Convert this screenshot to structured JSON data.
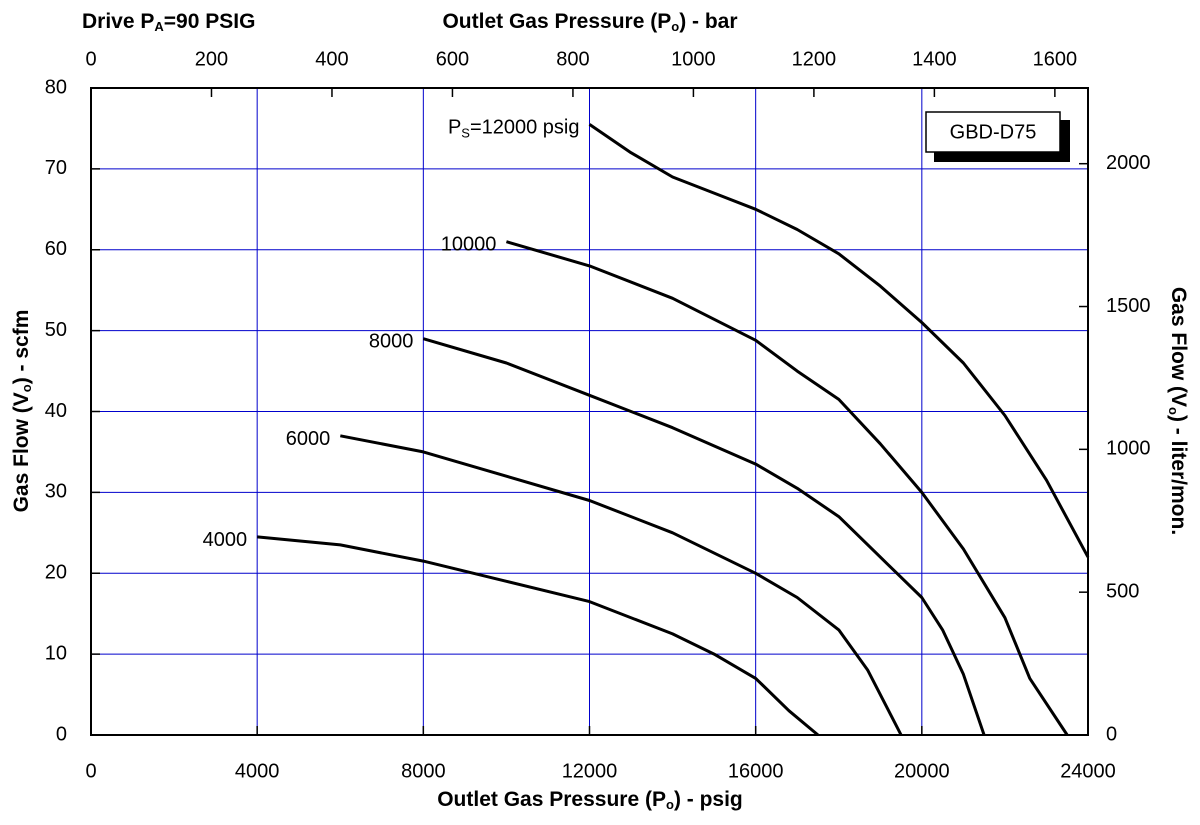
{
  "chart_data": {
    "type": "line",
    "top_left_label": [
      "Drive P",
      "A",
      "=90 PSIG"
    ],
    "x2_label": [
      "Outlet Gas Pressure (P",
      "o",
      ") - bar"
    ],
    "x_label": [
      "Outlet Gas Pressure (P",
      "o",
      ") - psig"
    ],
    "y_label": [
      "Gas Flow (V",
      "o",
      ") - scfm"
    ],
    "y2_label": [
      "Gas Flow (V",
      "o",
      ") - liter/mon."
    ],
    "annotation": "GBD-D75",
    "xlim": [
      0,
      24000
    ],
    "xticks": [
      0,
      4000,
      8000,
      12000,
      16000,
      20000,
      24000
    ],
    "x2lim": [
      0,
      1655
    ],
    "x2ticks": [
      0,
      200,
      400,
      600,
      800,
      1000,
      1200,
      1400,
      1600
    ],
    "ylim": [
      0,
      80
    ],
    "yticks": [
      0,
      10,
      20,
      30,
      40,
      50,
      60,
      70,
      80
    ],
    "y2lim": [
      0,
      2265
    ],
    "y2ticks": [
      0,
      500,
      1000,
      1500,
      2000
    ],
    "grid": true,
    "grid_color": "#0000cc",
    "series": [
      {
        "name": [
          "P",
          "S",
          "=12000 psig"
        ],
        "color": "#000000",
        "x": [
          12000,
          13000,
          14000,
          15000,
          16000,
          17000,
          18000,
          19000,
          20000,
          21000,
          22000,
          23000,
          24000
        ],
        "values": [
          75.5,
          72,
          69,
          67,
          65,
          62.5,
          59.5,
          55.5,
          51,
          46,
          39.5,
          31.5,
          22
        ]
      },
      {
        "name": [
          "10000"
        ],
        "color": "#000000",
        "x": [
          10000,
          12000,
          14000,
          16000,
          17000,
          18000,
          19000,
          20000,
          21000,
          22000,
          22600,
          23500
        ],
        "values": [
          61,
          58,
          54,
          48.8,
          45,
          41.5,
          36,
          30,
          23,
          14.5,
          7,
          0
        ]
      },
      {
        "name": [
          "8000"
        ],
        "color": "#000000",
        "x": [
          8000,
          10000,
          12000,
          14000,
          16000,
          17000,
          18000,
          19000,
          20000,
          20500,
          21000,
          21500
        ],
        "values": [
          49,
          46,
          42,
          38,
          33.5,
          30.5,
          27,
          22,
          17,
          13,
          7.5,
          0
        ]
      },
      {
        "name": [
          "6000"
        ],
        "color": "#000000",
        "x": [
          6000,
          8000,
          10000,
          12000,
          14000,
          16000,
          17000,
          18000,
          18700,
          19200,
          19500
        ],
        "values": [
          37,
          35,
          32,
          29,
          25,
          20,
          17,
          13,
          8,
          3,
          0
        ]
      },
      {
        "name": [
          "4000"
        ],
        "color": "#000000",
        "x": [
          4000,
          6000,
          8000,
          10000,
          12000,
          14000,
          15000,
          16000,
          16800,
          17500
        ],
        "values": [
          24.5,
          23.5,
          21.5,
          19,
          16.5,
          12.5,
          10,
          7,
          3,
          0
        ]
      }
    ]
  }
}
